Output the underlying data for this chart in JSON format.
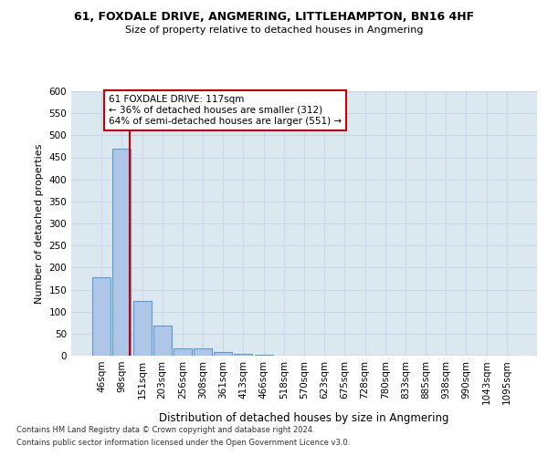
{
  "title1": "61, FOXDALE DRIVE, ANGMERING, LITTLEHAMPTON, BN16 4HF",
  "title2": "Size of property relative to detached houses in Angmering",
  "xlabel": "Distribution of detached houses by size in Angmering",
  "ylabel": "Number of detached properties",
  "bin_labels": [
    "46sqm",
    "98sqm",
    "151sqm",
    "203sqm",
    "256sqm",
    "308sqm",
    "361sqm",
    "413sqm",
    "466sqm",
    "518sqm",
    "570sqm",
    "623sqm",
    "675sqm",
    "728sqm",
    "780sqm",
    "833sqm",
    "885sqm",
    "938sqm",
    "990sqm",
    "1043sqm",
    "1095sqm"
  ],
  "bar_heights": [
    178,
    470,
    125,
    68,
    17,
    17,
    8,
    5,
    2,
    1,
    0,
    0,
    0,
    0,
    0,
    0,
    0,
    0,
    0,
    1,
    0
  ],
  "bar_color": "#aec6e8",
  "bar_edge_color": "#5b9bd5",
  "annotation_text": "61 FOXDALE DRIVE: 117sqm\n← 36% of detached houses are smaller (312)\n64% of semi-detached houses are larger (551) →",
  "annotation_box_color": "#ffffff",
  "annotation_box_edge_color": "#cc0000",
  "property_line_color": "#cc0000",
  "grid_color": "#c8d8e8",
  "background_color": "#dce8f0",
  "ylim": [
    0,
    600
  ],
  "yticks": [
    0,
    50,
    100,
    150,
    200,
    250,
    300,
    350,
    400,
    450,
    500,
    550,
    600
  ],
  "footer1": "Contains HM Land Registry data © Crown copyright and database right 2024.",
  "footer2": "Contains public sector information licensed under the Open Government Licence v3.0."
}
